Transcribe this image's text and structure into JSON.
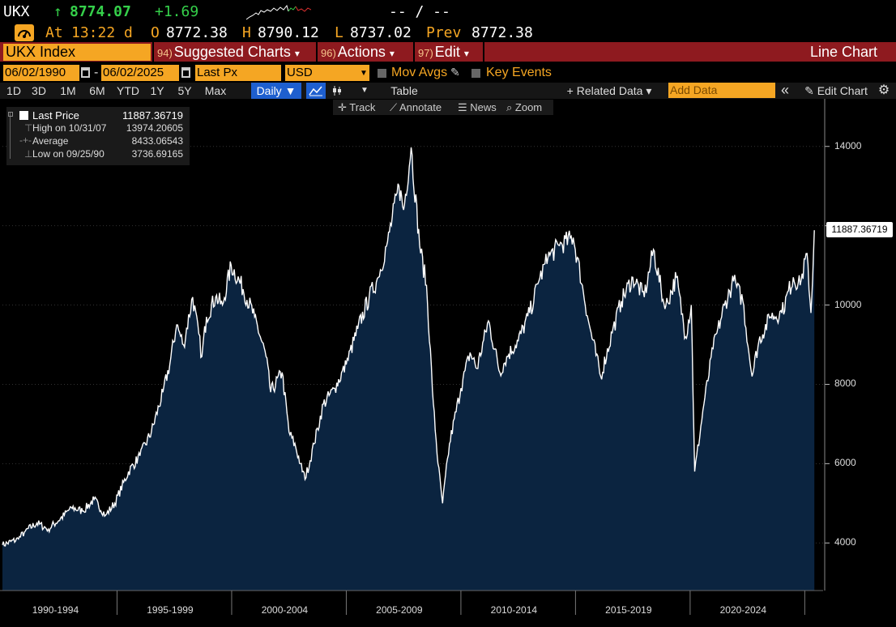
{
  "quote": {
    "ticker": "UKX",
    "arrow": "↑",
    "last": "8774.07",
    "change": "+1.69",
    "bid_ask": "-- / --",
    "time_prefix": "At",
    "time": "13:22 d",
    "open_label": "O",
    "open": "8772.38",
    "high_label": "H",
    "high": "8790.12",
    "low_label": "L",
    "low": "8737.02",
    "prev_label": "Prev",
    "prev": "8772.38"
  },
  "menu": {
    "security": "UKX Index",
    "suggested_num": "94)",
    "suggested": "Suggested Charts",
    "actions_num": "96)",
    "actions": "Actions",
    "edit_num": "97)",
    "edit": "Edit",
    "chart_type": "Line Chart",
    "caret": "▾"
  },
  "controls": {
    "start_date": "06/02/1990",
    "end_date": "06/02/2025",
    "date_sep": "-",
    "field": "Last Px",
    "currency": "USD",
    "mov_avgs": "Mov Avgs",
    "key_events": "Key Events"
  },
  "range": {
    "buttons": [
      "1D",
      "3D",
      "1M",
      "6M",
      "YTD",
      "1Y",
      "5Y",
      "Max"
    ],
    "frequency": "Daily ▼",
    "table": "Table",
    "related_data": "+ Related Data ▾",
    "add_data_placeholder": "Add Data",
    "collapse": "«",
    "edit_chart": "Edit Chart"
  },
  "tools": {
    "track": "Track",
    "annotate": "Annotate",
    "news": "News",
    "zoom": "Zoom"
  },
  "legend": {
    "last_price_label": "Last Price",
    "last_price": "11887.36719",
    "high_label": "High on 10/31/07",
    "high": "13974.20605",
    "average_label": "Average",
    "average": "8433.06543",
    "low_label": "Low on 09/25/90",
    "low": "3736.69165"
  },
  "colors": {
    "amber": "#f5a623",
    "menu_red": "#8e1a1f",
    "area_fill": "#0b2440",
    "line": "#ffffff",
    "green": "#35d04a"
  },
  "chart_data": {
    "type": "area",
    "series": [
      {
        "name": "Last Price",
        "x": [
          1990.0,
          1990.7,
          1991.0,
          1991.5,
          1992.0,
          1992.7,
          1993.0,
          1993.5,
          1994.0,
          1994.5,
          1994.9,
          1995.5,
          1996.0,
          1996.5,
          1997.0,
          1997.3,
          1997.6,
          1997.9,
          1998.3,
          1998.7,
          1998.9,
          1999.3,
          1999.6,
          1999.98,
          2000.5,
          2001.0,
          2001.5,
          2001.7,
          2002.2,
          2002.5,
          2002.8,
          2003.0,
          2003.2,
          2003.6,
          2004.0,
          2004.5,
          2005.0,
          2005.5,
          2006.0,
          2006.4,
          2006.8,
          2007.3,
          2007.5,
          2007.83,
          2008.2,
          2008.5,
          2008.8,
          2009.0,
          2009.2,
          2009.5,
          2010.0,
          2010.4,
          2010.7,
          2011.2,
          2011.7,
          2012.0,
          2012.5,
          2013.0,
          2013.4,
          2013.8,
          2014.3,
          2014.9,
          2015.3,
          2015.6,
          2016.1,
          2016.6,
          2017.0,
          2017.5,
          2018.0,
          2018.4,
          2018.9,
          2019.4,
          2019.8,
          2020.05,
          2020.2,
          2020.6,
          2021.0,
          2021.5,
          2021.9,
          2022.3,
          2022.7,
          2023.0,
          2023.5,
          2024.0,
          2024.5,
          2024.8,
          2025.1,
          2025.27,
          2025.42
        ],
        "values": [
          3950,
          4100,
          4300,
          4500,
          4350,
          4700,
          4900,
          4800,
          5100,
          4700,
          5000,
          5800,
          6200,
          6800,
          7800,
          8500,
          9500,
          9000,
          10200,
          8700,
          9700,
          10200,
          10000,
          11000,
          10400,
          9700,
          8700,
          7800,
          8300,
          6800,
          6400,
          6000,
          5600,
          6500,
          7500,
          7900,
          8500,
          9400,
          10200,
          10700,
          11600,
          13000,
          12400,
          13974,
          11500,
          10500,
          7500,
          6000,
          5000,
          6500,
          7900,
          8800,
          8400,
          9600,
          8300,
          8700,
          9100,
          9800,
          10600,
          11200,
          11500,
          11700,
          10500,
          9500,
          8200,
          9300,
          10100,
          10700,
          10200,
          11400,
          9900,
          10700,
          9200,
          10000,
          5800,
          7500,
          8900,
          10000,
          10600,
          10100,
          8200,
          9100,
          9700,
          9800,
          10700,
          10500,
          11300,
          9800,
          11887.37
        ]
      }
    ],
    "x_ticks": [
      "1990-1994",
      "1995-1999",
      "2000-2004",
      "2005-2009",
      "2010-2014",
      "2015-2019",
      "2020-2024"
    ],
    "y_ticks": [
      4000,
      6000,
      8000,
      10000,
      12000,
      14000
    ],
    "y_tick_labels": [
      "4000",
      "6000",
      "8000",
      "10000",
      "",
      "14000"
    ],
    "xlim": [
      1990.0,
      2025.8
    ],
    "ylim": [
      2800,
      15200
    ],
    "last_value_label": "11887.36719",
    "legend_position": "top-left",
    "grid": true
  }
}
